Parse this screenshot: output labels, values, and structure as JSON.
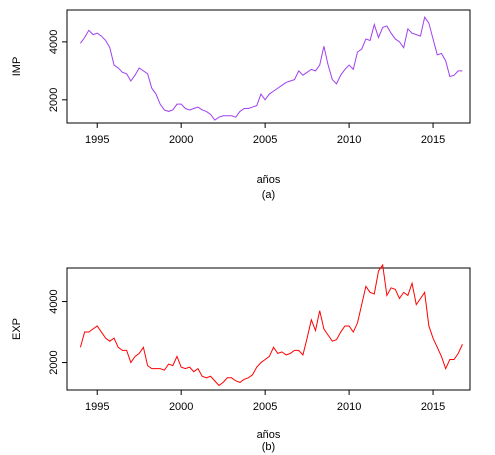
{
  "chart_data": [
    {
      "type": "line",
      "ylabel": "IMP",
      "xlabel": "años",
      "caption": "(a)",
      "x": [
        1994,
        1994.25,
        1994.5,
        1994.75,
        1995,
        1995.25,
        1995.5,
        1995.75,
        1996,
        1996.25,
        1996.5,
        1996.75,
        1997,
        1997.25,
        1997.5,
        1997.75,
        1998,
        1998.25,
        1998.5,
        1998.75,
        1999,
        1999.25,
        1999.5,
        1999.75,
        2000,
        2000.25,
        2000.5,
        2000.75,
        2001,
        2001.25,
        2001.5,
        2001.75,
        2002,
        2002.25,
        2002.5,
        2002.75,
        2003,
        2003.25,
        2003.5,
        2003.75,
        2004,
        2004.25,
        2004.5,
        2004.75,
        2005,
        2005.25,
        2005.5,
        2005.75,
        2006,
        2006.25,
        2006.5,
        2006.75,
        2007,
        2007.25,
        2007.5,
        2007.75,
        2008,
        2008.25,
        2008.5,
        2008.75,
        2009,
        2009.25,
        2009.5,
        2009.75,
        2010,
        2010.25,
        2010.5,
        2010.75,
        2011,
        2011.25,
        2011.5,
        2011.75,
        2012,
        2012.25,
        2012.5,
        2012.75,
        2013,
        2013.25,
        2013.5,
        2013.75,
        2014,
        2014.25,
        2014.5,
        2014.75,
        2015,
        2015.25,
        2015.5,
        2015.75,
        2016,
        2016.25,
        2016.5,
        2016.75
      ],
      "series": [
        {
          "name": "IMP",
          "color": "#a040f0",
          "values": [
            3950,
            4150,
            4400,
            4250,
            4300,
            4200,
            4050,
            3800,
            3200,
            3100,
            2950,
            2900,
            2650,
            2850,
            3100,
            3000,
            2900,
            2400,
            2200,
            1850,
            1650,
            1600,
            1650,
            1850,
            1850,
            1700,
            1650,
            1700,
            1750,
            1650,
            1600,
            1500,
            1300,
            1400,
            1450,
            1450,
            1450,
            1400,
            1600,
            1700,
            1700,
            1750,
            1800,
            2200,
            2000,
            2200,
            2300,
            2400,
            2500,
            2600,
            2650,
            2700,
            3000,
            2850,
            2950,
            3050,
            3000,
            3200,
            3850,
            3200,
            2700,
            2550,
            2850,
            3050,
            3200,
            3050,
            3650,
            3750,
            4100,
            4050,
            4600,
            4150,
            4500,
            4550,
            4300,
            4100,
            4000,
            3800,
            4450,
            4300,
            4250,
            4200,
            4850,
            4650,
            4100,
            3550,
            3600,
            3350,
            2800,
            2850,
            3000,
            3000
          ]
        }
      ],
      "xlim": [
        1993.2,
        2017.2
      ],
      "xticks": [
        1995,
        2000,
        2005,
        2010,
        2015
      ],
      "ylim": [
        1200,
        5100
      ],
      "yticks": [
        2000,
        4000
      ]
    },
    {
      "type": "line",
      "ylabel": "EXP",
      "xlabel": "años",
      "caption": "(b)",
      "x": [
        1994,
        1994.25,
        1994.5,
        1994.75,
        1995,
        1995.25,
        1995.5,
        1995.75,
        1996,
        1996.25,
        1996.5,
        1996.75,
        1997,
        1997.25,
        1997.5,
        1997.75,
        1998,
        1998.25,
        1998.5,
        1998.75,
        1999,
        1999.25,
        1999.5,
        1999.75,
        2000,
        2000.25,
        2000.5,
        2000.75,
        2001,
        2001.25,
        2001.5,
        2001.75,
        2002,
        2002.25,
        2002.5,
        2002.75,
        2003,
        2003.25,
        2003.5,
        2003.75,
        2004,
        2004.25,
        2004.5,
        2004.75,
        2005,
        2005.25,
        2005.5,
        2005.75,
        2006,
        2006.25,
        2006.5,
        2006.75,
        2007,
        2007.25,
        2007.5,
        2007.75,
        2008,
        2008.25,
        2008.5,
        2008.75,
        2009,
        2009.25,
        2009.5,
        2009.75,
        2010,
        2010.25,
        2010.5,
        2010.75,
        2011,
        2011.25,
        2011.5,
        2011.75,
        2012,
        2012.25,
        2012.5,
        2012.75,
        2013,
        2013.25,
        2013.5,
        2013.75,
        2014,
        2014.25,
        2014.5,
        2014.75,
        2015,
        2015.25,
        2015.5,
        2015.75,
        2016,
        2016.25,
        2016.5,
        2016.75
      ],
      "series": [
        {
          "name": "EXP",
          "color": "#ff0000",
          "values": [
            2500,
            3000,
            3000,
            3100,
            3200,
            3000,
            2800,
            2700,
            2800,
            2500,
            2400,
            2400,
            2000,
            2200,
            2300,
            2500,
            1900,
            1800,
            1800,
            1800,
            1750,
            1950,
            1900,
            2200,
            1850,
            1800,
            1850,
            1700,
            1800,
            1550,
            1500,
            1550,
            1400,
            1250,
            1350,
            1500,
            1500,
            1400,
            1350,
            1450,
            1500,
            1600,
            1850,
            2000,
            2100,
            2200,
            2500,
            2300,
            2350,
            2250,
            2300,
            2400,
            2400,
            2250,
            2800,
            3400,
            3050,
            3700,
            3100,
            2900,
            2700,
            2750,
            3000,
            3200,
            3200,
            3000,
            3300,
            3900,
            4500,
            4300,
            4250,
            5000,
            5200,
            4200,
            4450,
            4400,
            4100,
            4300,
            4200,
            4600,
            3900,
            4100,
            4300,
            3200,
            2800,
            2500,
            2200,
            1800,
            2100,
            2100,
            2300,
            2600
          ]
        }
      ],
      "xlim": [
        1993.2,
        2017.2
      ],
      "xticks": [
        1995,
        2000,
        2005,
        2010,
        2015
      ],
      "ylim": [
        1100,
        5100
      ],
      "yticks": [
        2000,
        4000
      ]
    }
  ]
}
